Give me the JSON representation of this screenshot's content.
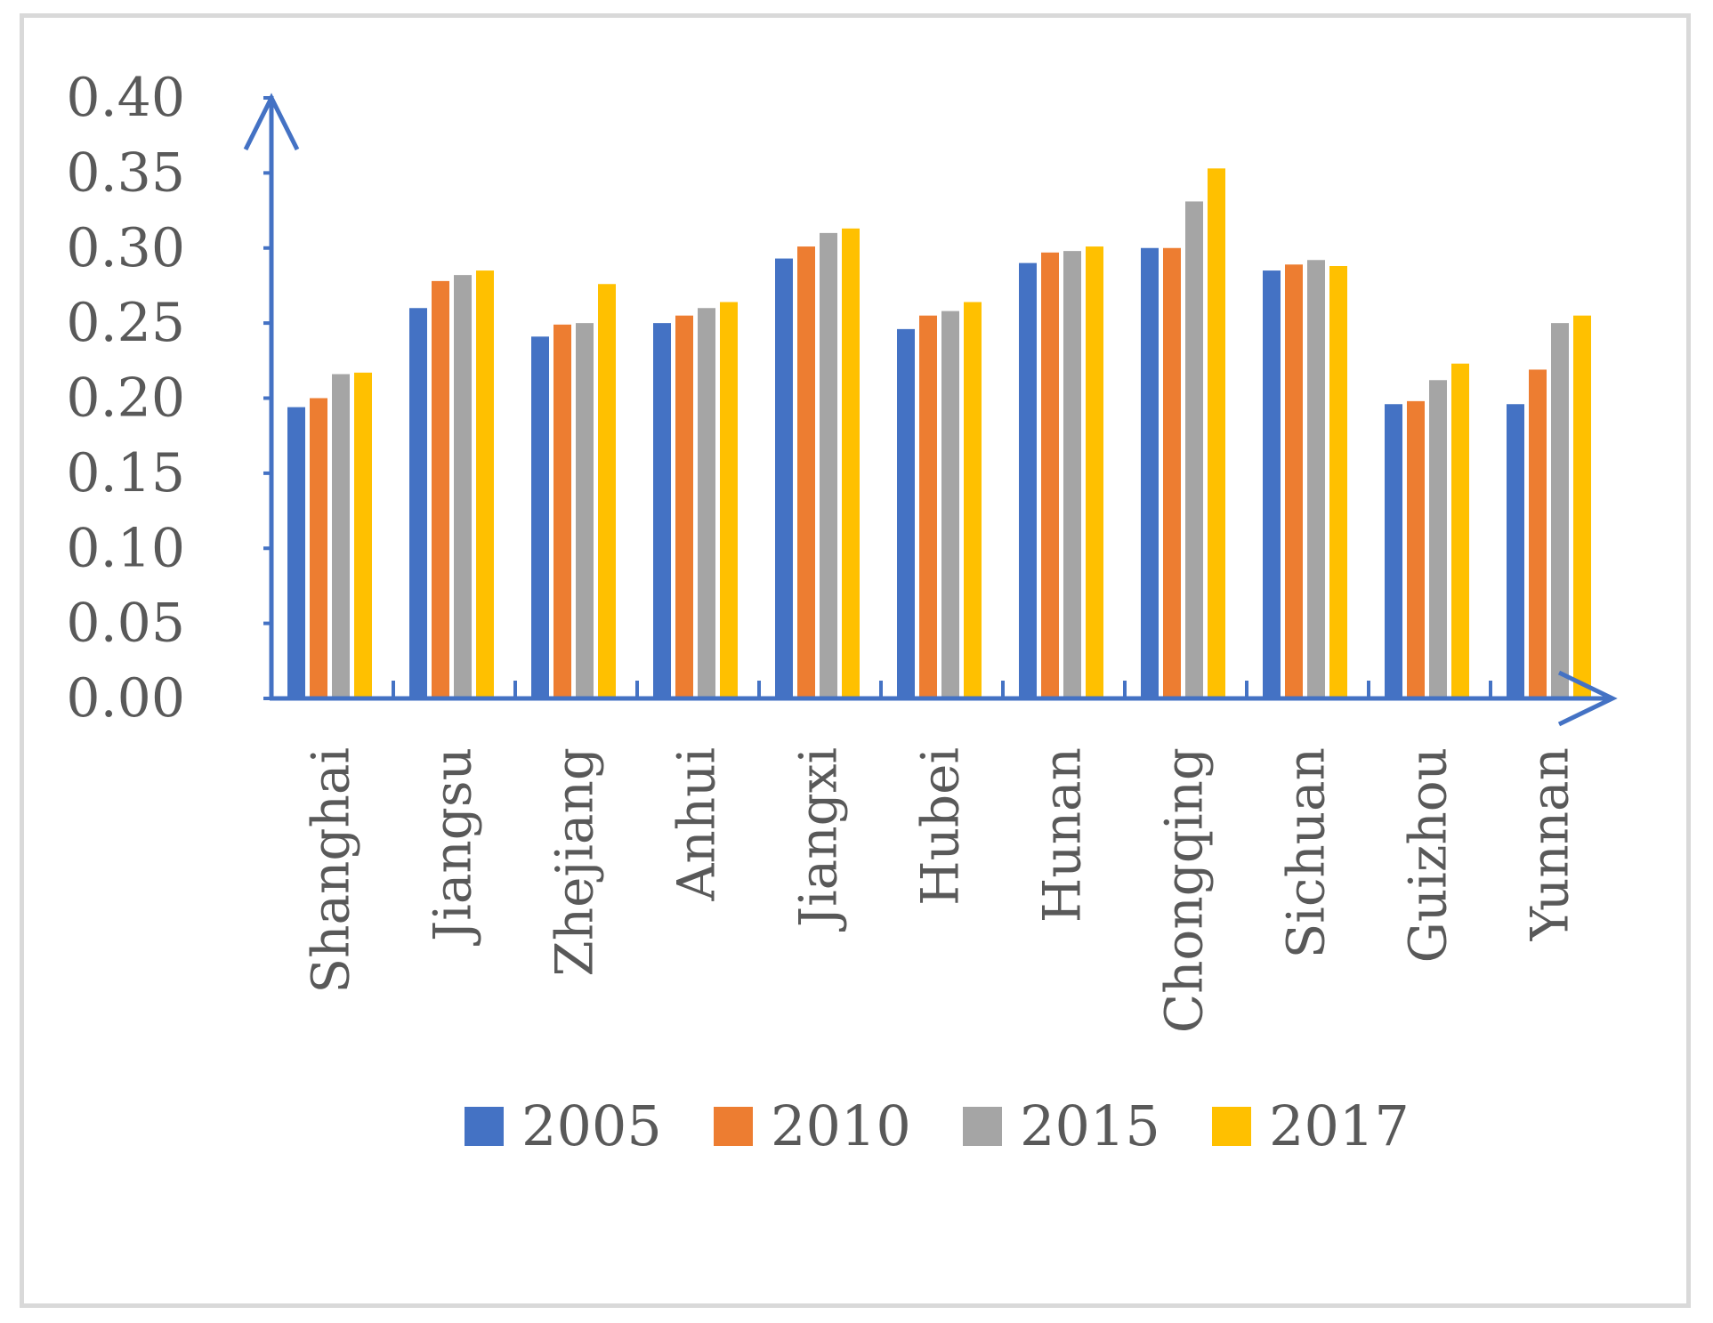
{
  "chart_data": {
    "type": "bar",
    "title": "",
    "xlabel": "",
    "ylabel": "",
    "ylim": [
      0,
      0.4
    ],
    "yticks": [
      "0.00",
      "0.05",
      "0.10",
      "0.15",
      "0.20",
      "0.25",
      "0.30",
      "0.35",
      "0.40"
    ],
    "categories": [
      "Shanghai",
      "Jiangsu",
      "Zhejiang",
      "Anhui",
      "Jiangxi",
      "Hubei",
      "Hunan",
      "Chongqing",
      "Sichuan",
      "Guizhou",
      "Yunnan"
    ],
    "series": [
      {
        "name": "2005",
        "color": "#4472c4",
        "values": [
          0.194,
          0.26,
          0.241,
          0.25,
          0.293,
          0.246,
          0.29,
          0.3,
          0.285,
          0.196,
          0.196
        ]
      },
      {
        "name": "2010",
        "color": "#ed7d31",
        "values": [
          0.2,
          0.278,
          0.249,
          0.255,
          0.301,
          0.255,
          0.297,
          0.3,
          0.289,
          0.198,
          0.219
        ]
      },
      {
        "name": "2015",
        "color": "#a5a5a5",
        "values": [
          0.216,
          0.282,
          0.25,
          0.26,
          0.31,
          0.258,
          0.298,
          0.331,
          0.292,
          0.212,
          0.25
        ]
      },
      {
        "name": "2017",
        "color": "#ffc000",
        "values": [
          0.217,
          0.285,
          0.276,
          0.264,
          0.313,
          0.264,
          0.301,
          0.353,
          0.288,
          0.223,
          0.255
        ]
      }
    ],
    "legend_position": "bottom",
    "axis_color": "#4472c4",
    "grid": false
  }
}
